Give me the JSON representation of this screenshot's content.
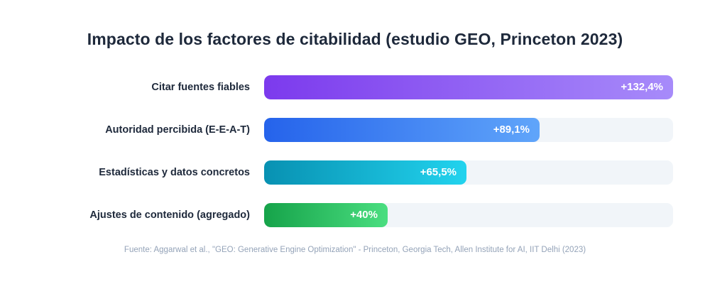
{
  "chart_data": {
    "type": "bar",
    "orientation": "horizontal",
    "title": "Impacto de los factores de citabilidad (estudio GEO, Princeton 2023)",
    "categories": [
      "Citar fuentes fiables",
      "Autoridad percibida (E-E-A-T)",
      "Estadísticas y datos concretos",
      "Ajustes de contenido (agregado)"
    ],
    "values": [
      132.4,
      89.1,
      65.5,
      40
    ],
    "value_labels": [
      "+132,4%",
      "+89,1%",
      "+65,5%",
      "+40%"
    ],
    "xlim": [
      0,
      132.4
    ],
    "grid": false,
    "colors": [
      [
        "#7c3aed",
        "#a78bfa"
      ],
      [
        "#2563eb",
        "#60a5fa"
      ],
      [
        "#0891b2",
        "#22d3ee"
      ],
      [
        "#16a34a",
        "#4ade80"
      ]
    ],
    "track_color": "#f1f5f9",
    "source": "Fuente: Aggarwal et al., \"GEO: Generative Engine Optimization\" - Princeton, Georgia Tech, Allen Institute for AI, IIT Delhi (2023)"
  }
}
